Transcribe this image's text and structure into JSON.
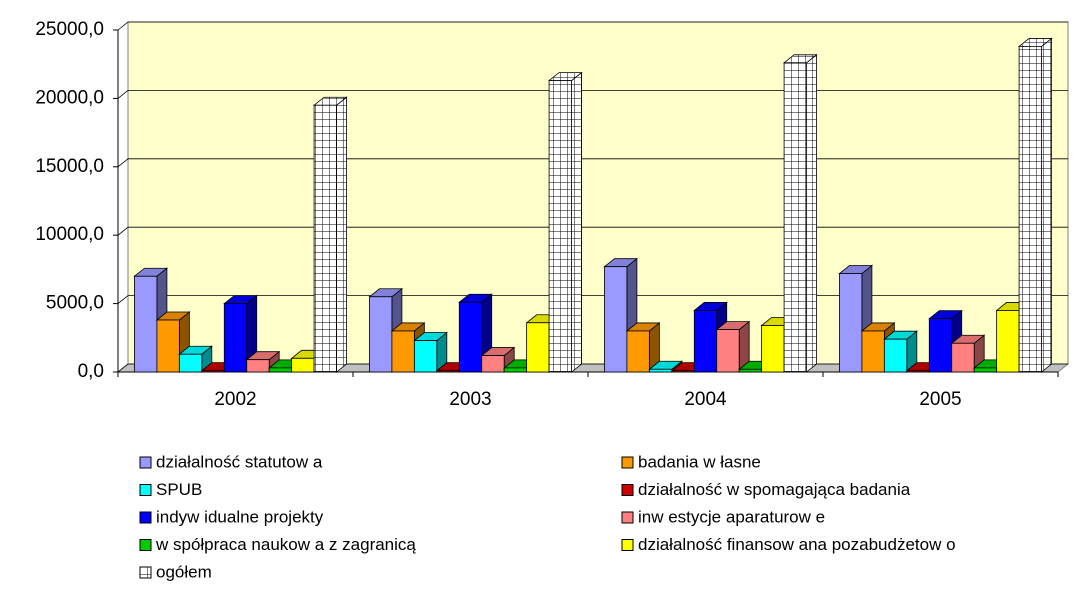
{
  "chart_data": {
    "type": "bar3d",
    "categories": [
      "2002",
      "2003",
      "2004",
      "2005"
    ],
    "series": [
      {
        "name": "działalność statutow a",
        "color": "#9999ff",
        "values": [
          7000,
          5500,
          7700,
          7200
        ]
      },
      {
        "name": "badania w łasne",
        "color": "#ff9900",
        "values": [
          3800,
          3000,
          3000,
          3000
        ]
      },
      {
        "name": "SPUB",
        "color": "#00ffff",
        "values": [
          1300,
          2300,
          200,
          2400
        ]
      },
      {
        "name": "działalność w spomagająca badania",
        "color": "#cc0000",
        "values": [
          100,
          100,
          100,
          100
        ]
      },
      {
        "name": "indyw idualne projekty",
        "color": "#0000ff",
        "values": [
          5000,
          5100,
          4500,
          3900
        ]
      },
      {
        "name": "inw estycje aparaturow e",
        "color": "#ff8080",
        "values": [
          900,
          1200,
          3100,
          2100
        ]
      },
      {
        "name": "w spółpraca naukow a z zagranicą",
        "color": "#00cc00",
        "values": [
          300,
          300,
          200,
          300
        ]
      },
      {
        "name": "działalność finansow ana pozabudżetow o",
        "color": "#ffff00",
        "values": [
          1000,
          3600,
          3400,
          4500
        ]
      },
      {
        "name": "ogółem",
        "color": "grid",
        "values": [
          19500,
          21300,
          22600,
          23800
        ]
      }
    ],
    "ylim": [
      0,
      25000
    ],
    "yticks": [
      {
        "value": 0,
        "label": "0,0"
      },
      {
        "value": 5000,
        "label": "5000,0"
      },
      {
        "value": 10000,
        "label": "10000,0"
      },
      {
        "value": 15000,
        "label": "15000,0"
      },
      {
        "value": 20000,
        "label": "20000,0"
      },
      {
        "value": 25000,
        "label": "25000,0"
      }
    ],
    "grid": true
  }
}
